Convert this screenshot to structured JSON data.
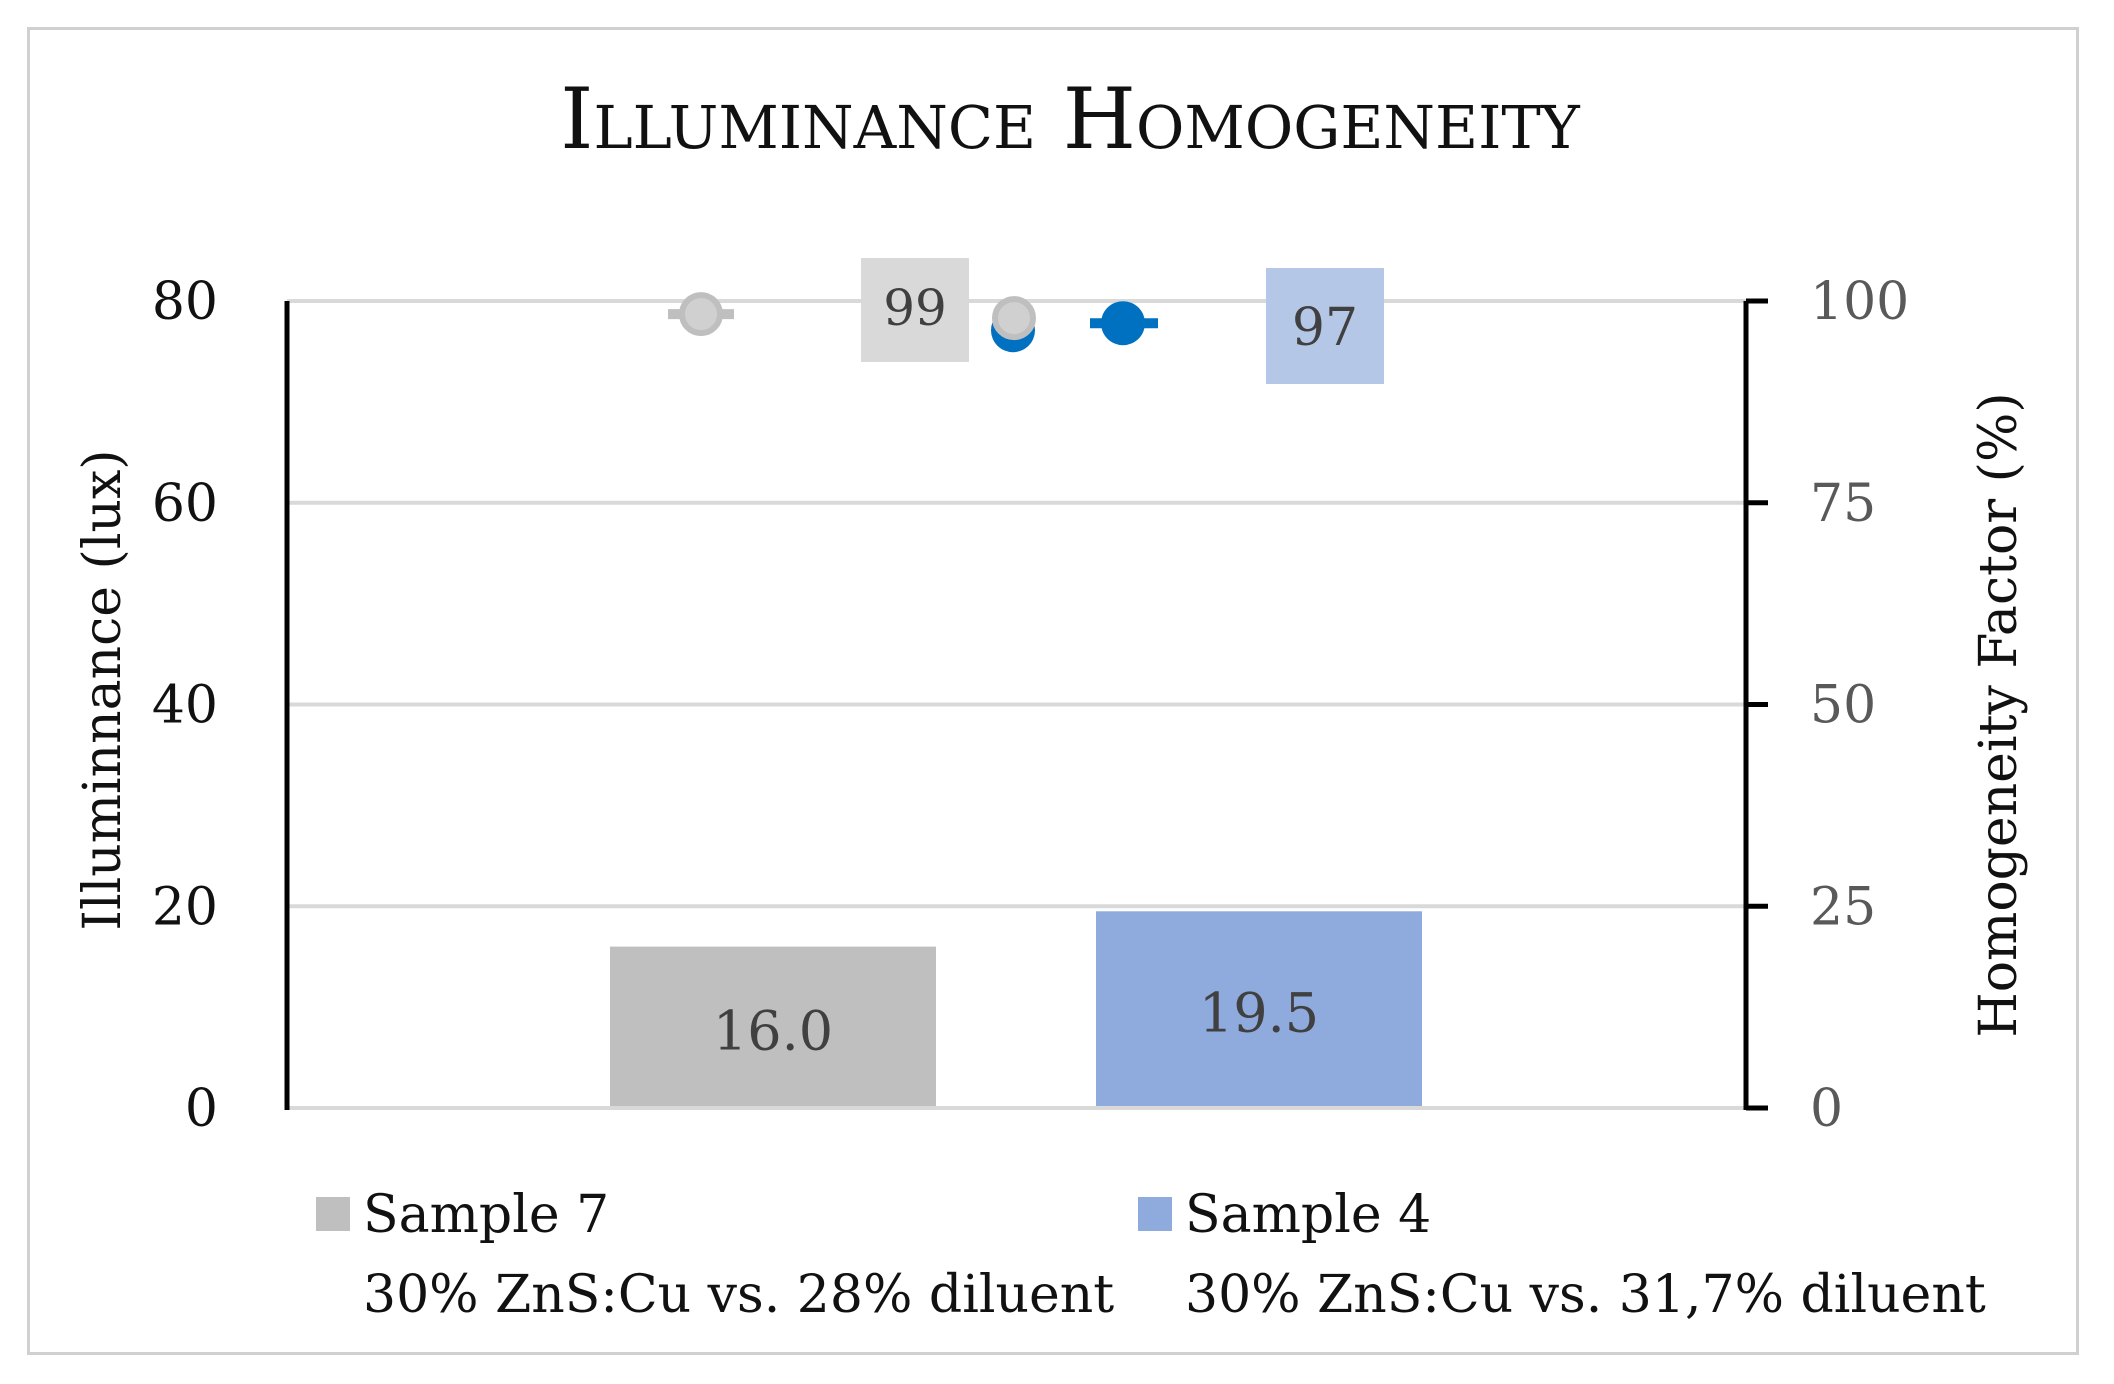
{
  "chart_data": {
    "type": "bar",
    "title": "Illuminance Homogeneity",
    "ylabel": "Illuminnance (lux)",
    "y2label": "Homogeneity Factor (%)",
    "ylim": [
      0,
      80
    ],
    "y2lim": [
      0,
      100
    ],
    "yticks": [
      0,
      20,
      40,
      60,
      80
    ],
    "y2ticks": [
      0,
      25,
      50,
      75,
      100
    ],
    "grid": true,
    "legend_position": "bottom",
    "bars": [
      {
        "name": "Sample 7",
        "description": "30% ZnS:Cu vs. 28% diluent",
        "value": 16.0,
        "value_label": "16.0",
        "color": "#bfbfbf"
      },
      {
        "name": "Sample 4",
        "description": "30% ZnS:Cu vs. 31,7% diluent",
        "value": 19.5,
        "value_label": "19.5",
        "color": "#8faadc"
      }
    ],
    "homogeneity_series": [
      {
        "name": "Sample 7",
        "value": 99,
        "value_label": "99",
        "marker_color": "#bfbfbf",
        "label_bg": "#d9d9d9"
      },
      {
        "name": "Sample 4",
        "value": 97,
        "value_label": "97",
        "marker_color": "#0070c0",
        "label_bg": "#b4c7e7"
      }
    ]
  }
}
